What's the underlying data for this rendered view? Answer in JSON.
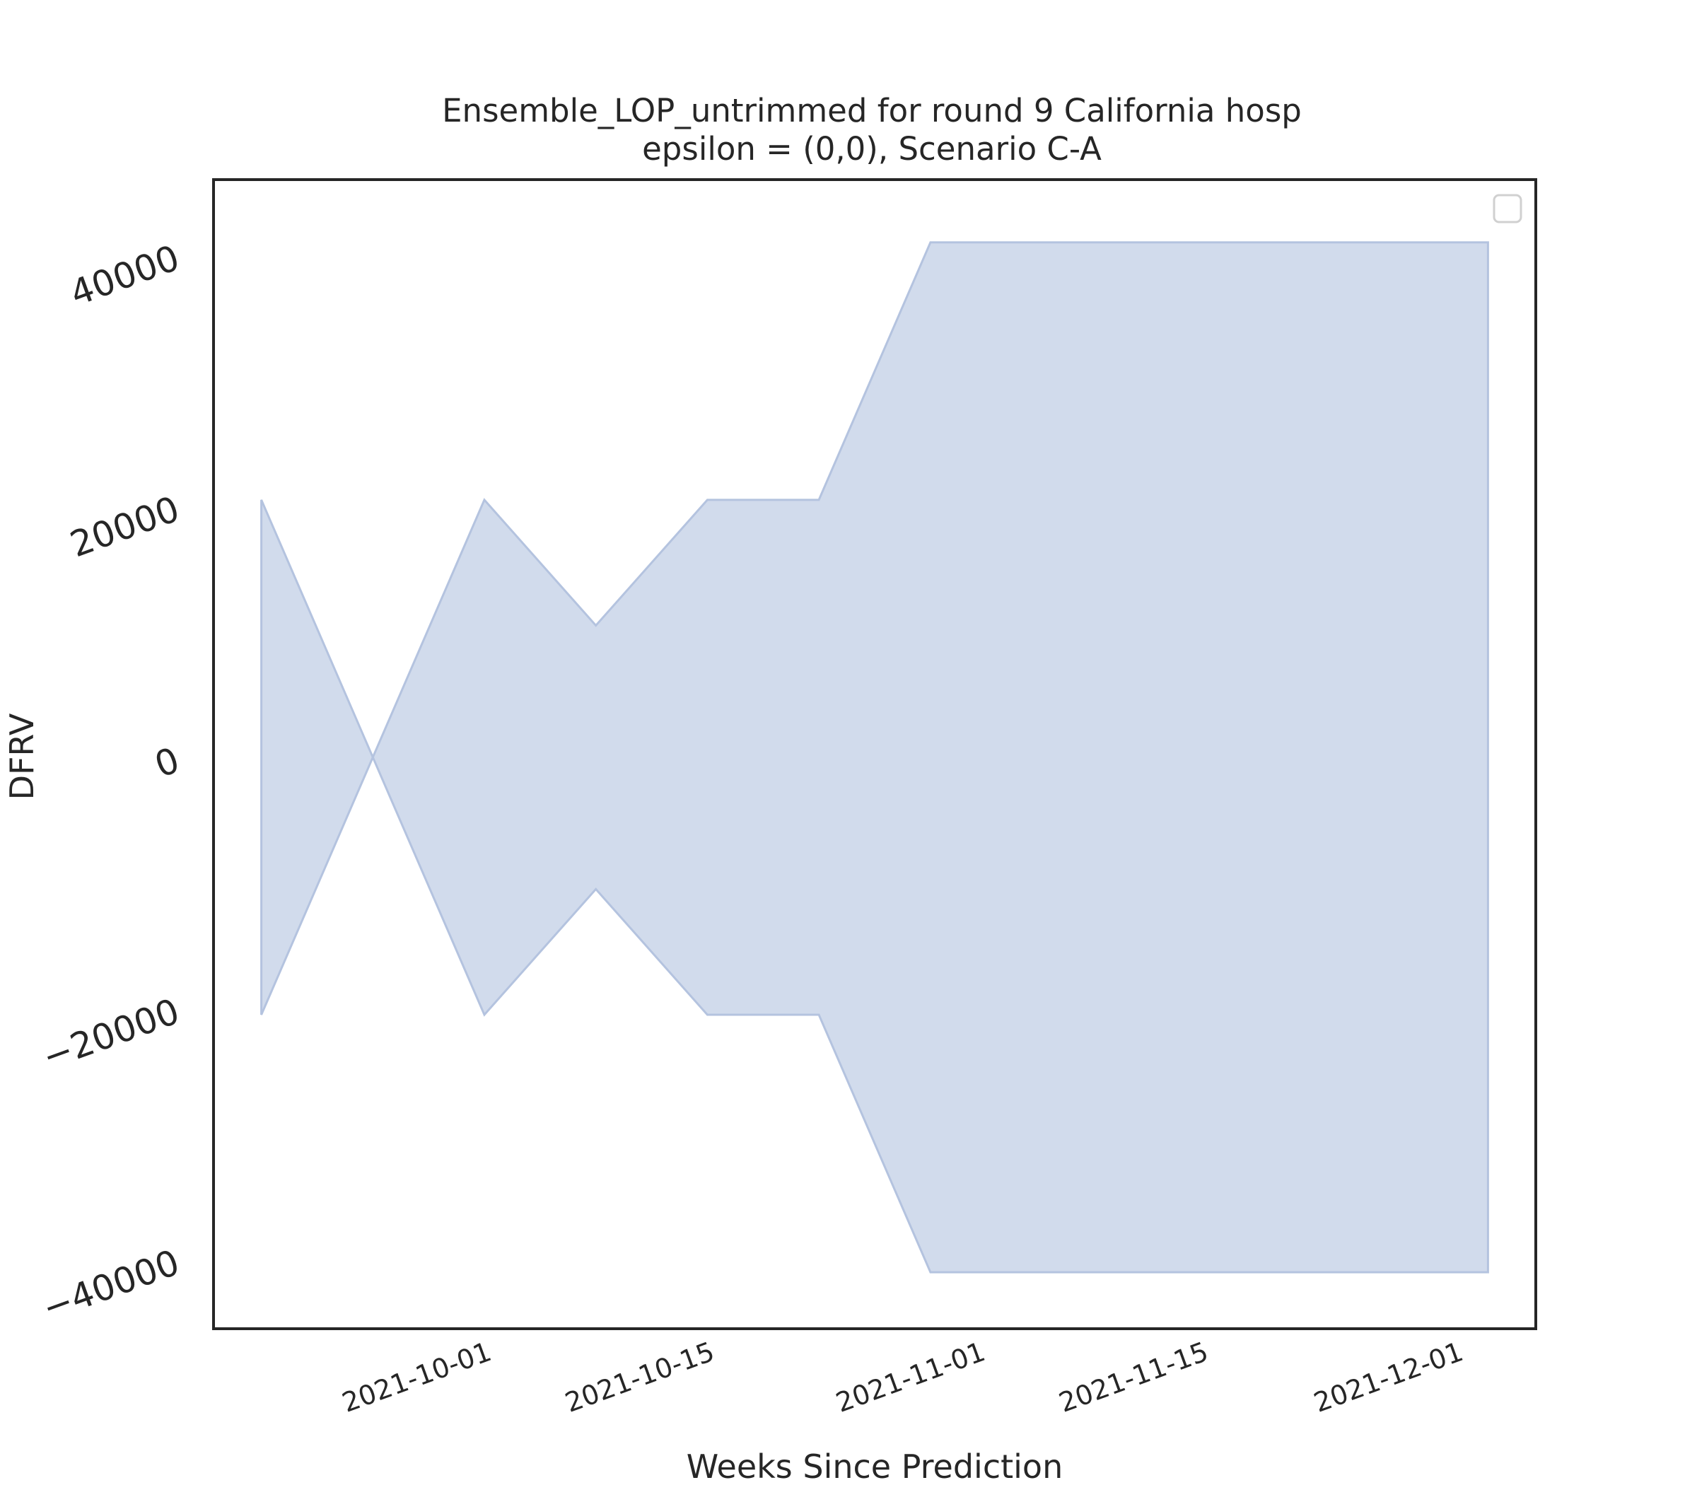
{
  "chart_data": {
    "type": "area",
    "title": "Ensemble_LOP_untrimmed for round 9 California hosp",
    "subtitle": "epsilon = (0,0), Scenario C-A",
    "xlabel": "Weeks Since Prediction",
    "ylabel": "DFRV",
    "x_tick_labels": [
      "2021-10-01",
      "2021-10-15",
      "2021-11-01",
      "2021-11-15",
      "2021-12-01"
    ],
    "y_tick_labels": [
      "−40000",
      "−20000",
      "0",
      "20000",
      "40000"
    ],
    "y_ticks": [
      -40000,
      -20000,
      0,
      20000,
      40000
    ],
    "ylim": [
      -45500,
      46000
    ],
    "xlim": [
      "2021-09-15",
      "2021-12-07"
    ],
    "legend": "top-right",
    "grid": false,
    "band_color": "#d1dbec",
    "band_edge_color": "#b4c3df",
    "x": [
      "2021-09-18",
      "2021-09-25",
      "2021-10-02",
      "2021-10-09",
      "2021-10-16",
      "2021-10-23",
      "2021-10-30",
      "2021-11-06",
      "2021-11-13",
      "2021-11-20",
      "2021-11-27",
      "2021-12-04"
    ],
    "upper": [
      20500,
      0,
      20500,
      10500,
      20500,
      20500,
      41000,
      41000,
      41000,
      41000,
      41000,
      41000
    ],
    "lower": [
      -20500,
      0,
      -20500,
      -10500,
      -20500,
      -20500,
      -41000,
      -41000,
      -41000,
      -41000,
      -41000,
      -41000
    ]
  }
}
